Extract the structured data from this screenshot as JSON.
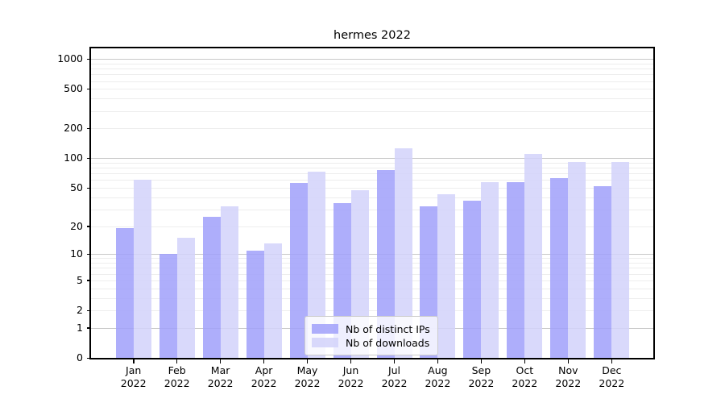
{
  "title": "hermes 2022",
  "colors": {
    "distinct_ips": "#a0a0fa",
    "downloads": "#d2d2fa",
    "grid_major": "#c8c8c8",
    "grid_minor": "#ededed",
    "axis": "#000000"
  },
  "legend": {
    "items": [
      {
        "label": "Nb of distinct IPs",
        "color_key": "distinct_ips"
      },
      {
        "label": "Nb of downloads",
        "color_key": "downloads"
      }
    ]
  },
  "chart_data": {
    "type": "bar",
    "title": "hermes 2022",
    "categories": [
      "Jan 2022",
      "Feb 2022",
      "Mar 2022",
      "Apr 2022",
      "May 2022",
      "Jun 2022",
      "Jul 2022",
      "Aug 2022",
      "Sep 2022",
      "Oct 2022",
      "Nov 2022",
      "Dec 2022"
    ],
    "series": [
      {
        "name": "Nb of distinct IPs",
        "color_key": "distinct_ips",
        "values": [
          19,
          10,
          25,
          11,
          56,
          35,
          76,
          32,
          37,
          57,
          63,
          52
        ]
      },
      {
        "name": "Nb of downloads",
        "color_key": "downloads",
        "values": [
          61,
          15,
          32,
          13,
          73,
          47,
          126,
          43,
          57,
          111,
          92,
          92
        ]
      }
    ],
    "xlabel": "",
    "ylabel": "",
    "yscale": "log(1+x)",
    "y_ticks": [
      0,
      1,
      2,
      5,
      10,
      20,
      50,
      100,
      200,
      500,
      1000
    ],
    "y_minor_ticks_per_decade": [
      2,
      3,
      4,
      5,
      6,
      7,
      8,
      9
    ],
    "ylim": [
      0,
      1280
    ],
    "grid": true,
    "legend_position": "lower-center"
  }
}
